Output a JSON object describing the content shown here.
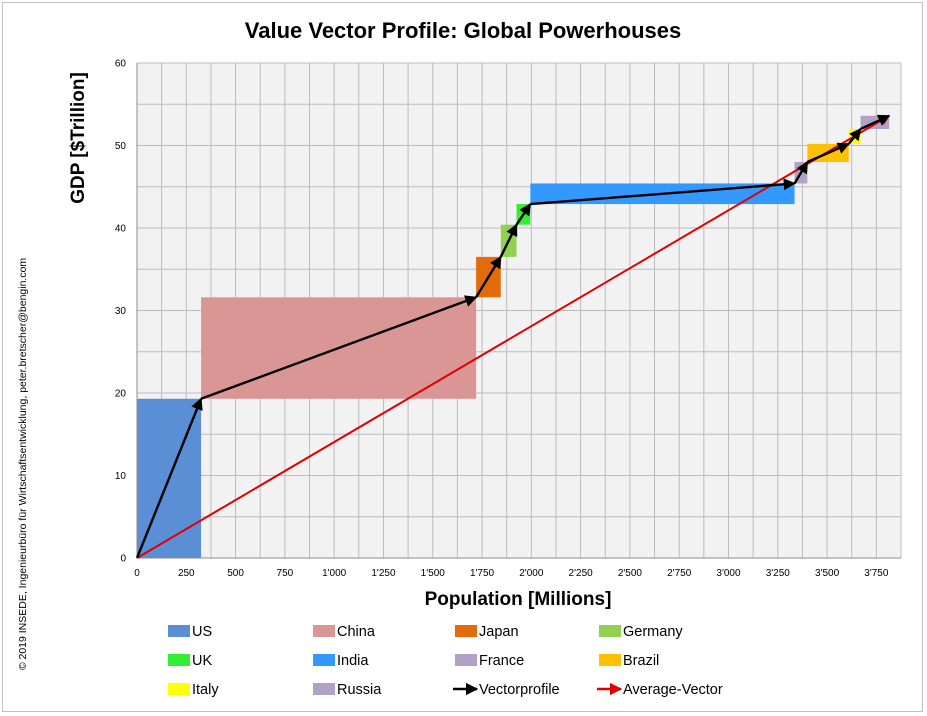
{
  "chart_data": {
    "type": "variwide-bar-vector",
    "title": "Value Vector Profile: Global Powerhouses",
    "xlabel": "Population [Millions]",
    "ylabel": "GDP [$Trillion]",
    "xlim": [
      0,
      3875
    ],
    "ylim": [
      0,
      60
    ],
    "x_ticks": [
      0,
      250,
      500,
      750,
      1000,
      1250,
      1500,
      1750,
      2000,
      2250,
      2500,
      2750,
      3000,
      3250,
      3500,
      3750
    ],
    "x_tick_labels": [
      "0",
      "250",
      "500",
      "750",
      "1'000",
      "1'250",
      "1'500",
      "1'750",
      "2'000",
      "2'250",
      "2'500",
      "2'750",
      "3'000",
      "3'250",
      "3'500",
      "3'750"
    ],
    "y_ticks": [
      0,
      10,
      20,
      30,
      40,
      50,
      60
    ],
    "y_tick_labels": [
      "0",
      "10",
      "20",
      "30",
      "40",
      "50",
      "60"
    ],
    "grid": true,
    "blocks": [
      {
        "name": "US",
        "color": "#5b8fd5",
        "x0": 0,
        "x1": 325,
        "y0": 0,
        "y1": 19.3
      },
      {
        "name": "China",
        "color": "#d99694",
        "x0": 325,
        "x1": 1720,
        "y0": 19.3,
        "y1": 31.6
      },
      {
        "name": "Japan",
        "color": "#e36c0a",
        "x0": 1720,
        "x1": 1845,
        "y0": 31.6,
        "y1": 36.5
      },
      {
        "name": "Germany",
        "color": "#92d050",
        "x0": 1845,
        "x1": 1925,
        "y0": 36.5,
        "y1": 40.4
      },
      {
        "name": "UK",
        "color": "#33ee33",
        "x0": 1925,
        "x1": 1995,
        "y0": 40.4,
        "y1": 42.9
      },
      {
        "name": "India",
        "color": "#3399ff",
        "x0": 1995,
        "x1": 3335,
        "y0": 42.9,
        "y1": 45.4
      },
      {
        "name": "France",
        "color": "#b2a1c7",
        "x0": 3335,
        "x1": 3400,
        "y0": 45.4,
        "y1": 48.0
      },
      {
        "name": "Brazil",
        "color": "#ffc000",
        "x0": 3400,
        "x1": 3610,
        "y0": 48.0,
        "y1": 50.2
      },
      {
        "name": "Italy",
        "color": "#ffff00",
        "x0": 3610,
        "x1": 3670,
        "y0": 50.2,
        "y1": 52.0
      },
      {
        "name": "Russia",
        "color": "#b2a1c7",
        "x0": 3670,
        "x1": 3815,
        "y0": 52.0,
        "y1": 53.6
      }
    ],
    "vector_profile": {
      "name": "Vectorprofile",
      "color": "#000000",
      "points": [
        [
          0,
          0
        ],
        [
          325,
          19.3
        ],
        [
          1720,
          31.6
        ],
        [
          1845,
          36.5
        ],
        [
          1925,
          40.4
        ],
        [
          1995,
          42.9
        ],
        [
          3335,
          45.4
        ],
        [
          3400,
          48.0
        ],
        [
          3610,
          50.2
        ],
        [
          3670,
          52.0
        ],
        [
          3815,
          53.6
        ]
      ]
    },
    "average_vector": {
      "name": "Average-Vector",
      "color": "#e00000",
      "from": [
        0,
        0
      ],
      "to": [
        3815,
        53.6
      ]
    },
    "legend": {
      "placement": "bottom",
      "items": [
        {
          "label": "US",
          "kind": "box",
          "color": "#5b8fd5"
        },
        {
          "label": "China",
          "kind": "box",
          "color": "#d99694"
        },
        {
          "label": "Japan",
          "kind": "box",
          "color": "#e36c0a"
        },
        {
          "label": "Germany",
          "kind": "box",
          "color": "#92d050"
        },
        {
          "label": "UK",
          "kind": "box",
          "color": "#33ee33"
        },
        {
          "label": "India",
          "kind": "box",
          "color": "#3399ff"
        },
        {
          "label": "France",
          "kind": "box",
          "color": "#b2a1c7"
        },
        {
          "label": "Brazil",
          "kind": "box",
          "color": "#ffc000"
        },
        {
          "label": "Italy",
          "kind": "box",
          "color": "#ffff00"
        },
        {
          "label": "Russia",
          "kind": "box",
          "color": "#b2a1c7"
        },
        {
          "label": "Vectorprofile",
          "kind": "arrow",
          "color": "#000000"
        },
        {
          "label": "Average-Vector",
          "kind": "arrow",
          "color": "#e00000"
        }
      ]
    },
    "copyright": "© 2019 INSEDE, Ingenieurbüro für Wirtschaftsentwicklung, peter.bretscher@bengin.com"
  }
}
